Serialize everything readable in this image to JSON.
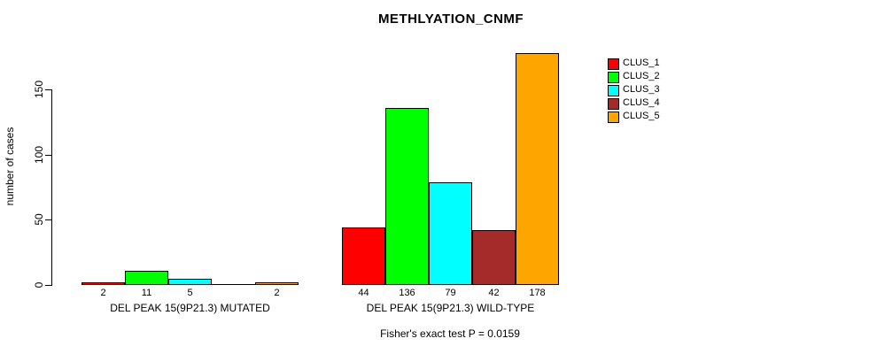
{
  "chart_data": {
    "type": "bar",
    "title": "METHLYATION_CNMF",
    "ylabel": "number of cases",
    "xlabel": "",
    "ylim": [
      0,
      150
    ],
    "yticks": [
      0,
      50,
      100,
      150
    ],
    "grid": false,
    "legend_position": "right",
    "categories": [
      "DEL PEAK 15(9P21.3) MUTATED",
      "DEL PEAK 15(9P21.3) WILD-TYPE"
    ],
    "series": [
      {
        "name": "CLUS_1",
        "color": "#FF0000",
        "values": [
          2,
          44
        ]
      },
      {
        "name": "CLUS_2",
        "color": "#00FF00",
        "values": [
          11,
          136
        ]
      },
      {
        "name": "CLUS_3",
        "color": "#00FFFF",
        "values": [
          5,
          79
        ]
      },
      {
        "name": "CLUS_4",
        "color": "#A52A2A",
        "values": [
          0,
          42
        ]
      },
      {
        "name": "CLUS_5",
        "color": "#FFA500",
        "values": [
          2,
          178
        ]
      }
    ],
    "bar_value_labels": {
      "DEL PEAK 15(9P21.3) MUTATED": [
        "2",
        "11",
        "5",
        "",
        "2"
      ],
      "DEL PEAK 15(9P21.3) WILD-TYPE": [
        "44",
        "136",
        "79",
        "42",
        "178"
      ]
    },
    "annotation": "Fisher's exact test P = 0.0159"
  }
}
